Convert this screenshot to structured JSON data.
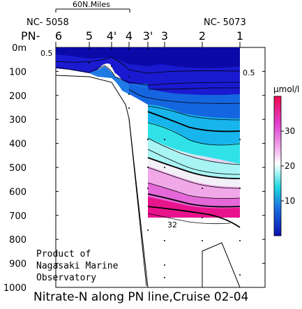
{
  "chart_data": {
    "type": "heatmap",
    "title": "Nitrate-N along PN line,Cruise 02-04",
    "scale_label": "60N.Miles",
    "stations": [
      "6",
      "5",
      "4'",
      "4",
      "3'",
      "3",
      "2",
      "1"
    ],
    "station_prefix": "PN-",
    "endpoint_labels": [
      "NC- 5058",
      "NC- 5073"
    ],
    "ylim": [
      0,
      1000
    ],
    "y_reversed": true,
    "yticks": [
      "0m",
      "100",
      "200",
      "300",
      "400",
      "500",
      "600",
      "700",
      "800",
      "900",
      "1000"
    ],
    "colorbar": {
      "unit": "μmol/l",
      "ticks": [
        10,
        20,
        30
      ],
      "range": [
        0,
        40
      ]
    },
    "contour_labels": [
      "0.5",
      "0.5",
      "32"
    ],
    "annotation": [
      "Product of",
      "Nagasaki Marine",
      "Observatory"
    ]
  }
}
